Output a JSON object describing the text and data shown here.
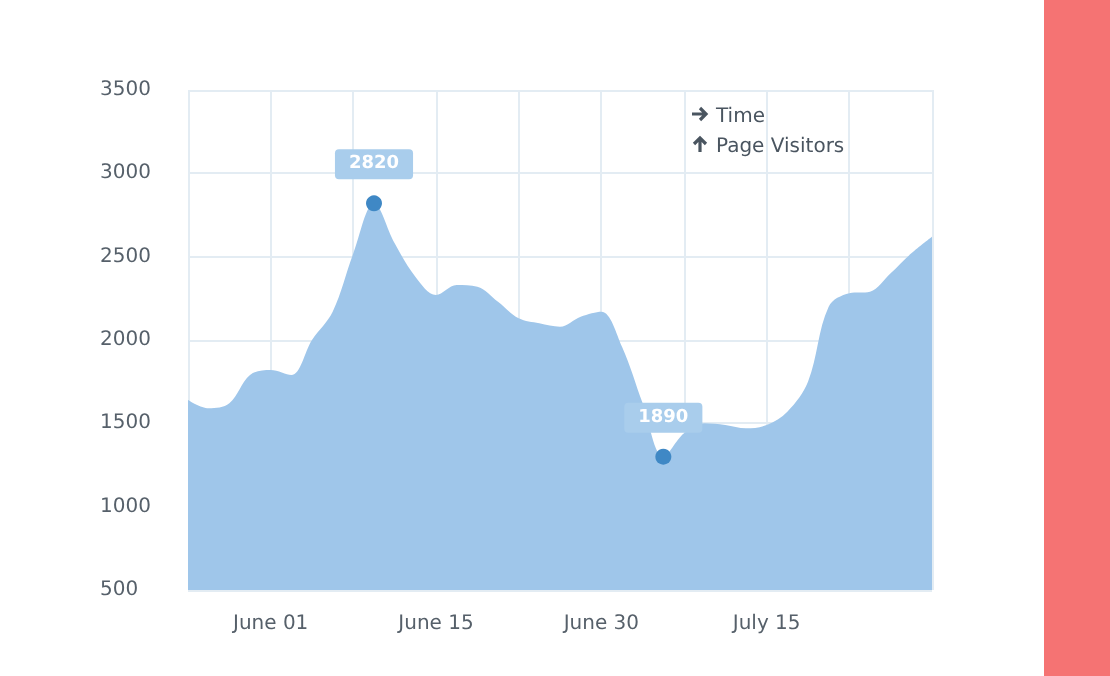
{
  "chart_data": {
    "type": "area",
    "xlabel": "Time",
    "ylabel": "Page Visitors",
    "categories": [
      null,
      null,
      null,
      null,
      "June 01",
      null,
      null,
      null,
      null,
      null,
      null,
      null,
      "June 15",
      null,
      null,
      null,
      null,
      null,
      null,
      null,
      "June 30",
      null,
      null,
      null,
      null,
      null,
      null,
      null,
      "July 15",
      null,
      null,
      null,
      null,
      null,
      null,
      null,
      null
    ],
    "series": [
      {
        "color": "#9fc6ea",
        "values": [
          1640,
          1590,
          1620,
          1790,
          1820,
          1790,
          2000,
          2170,
          2520,
          2820,
          2580,
          2380,
          2270,
          2330,
          2320,
          2230,
          2130,
          2100,
          2080,
          2140,
          2170,
          1960,
          1620,
          1300,
          1440,
          1500,
          1490,
          1470,
          1490,
          1570,
          1750,
          2200,
          2280,
          2290,
          2400,
          2520,
          2620
        ]
      }
    ],
    "annotations": [
      {
        "text": "2820",
        "y": 2820
      },
      {
        "text": "1890",
        "y": 1300
      }
    ],
    "ylim": [
      500,
      3500
    ],
    "yticks": [
      500,
      1000,
      1500,
      2000,
      2500,
      3000,
      3500
    ],
    "grid": true
  }
}
